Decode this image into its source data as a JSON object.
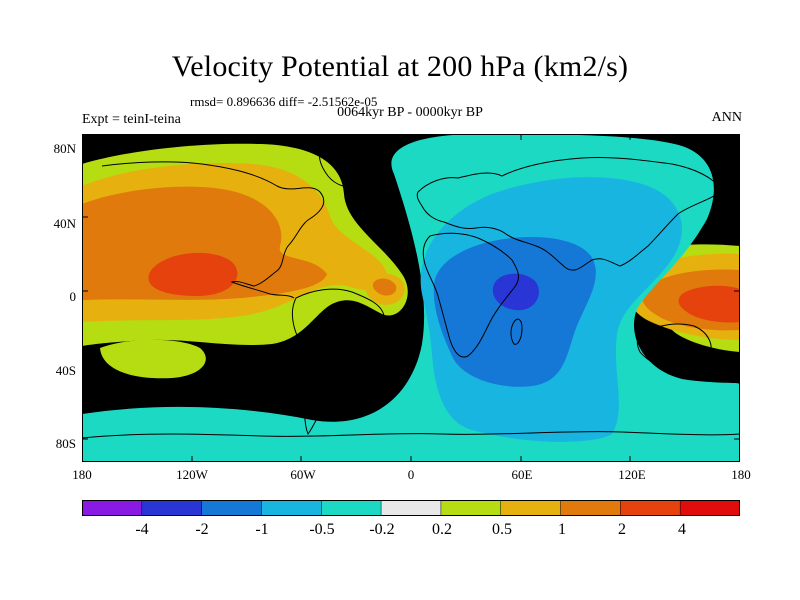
{
  "figure": {
    "title": "Velocity Potential at 200 hPa (km2/s)",
    "stats": "rmsd= 0.896636 diff= -2.51562e-05",
    "period": "0064kyr BP - 0000kyr BP",
    "experiment": "Expt = teinI-teina",
    "season": "ANN"
  },
  "axes": {
    "lat_labels": [
      "80N",
      "40N",
      "0",
      "40S",
      "80S"
    ],
    "lon_labels": [
      "180",
      "120W",
      "60W",
      "0",
      "60E",
      "120E",
      "180"
    ]
  },
  "colorbar": {
    "labels": [
      "-4",
      "-2",
      "-1",
      "-0.5",
      "-0.2",
      "0.2",
      "0.5",
      "1",
      "2",
      "4"
    ],
    "colors": [
      "#8a19e3",
      "#2a35d6",
      "#1578d6",
      "#19b5e1",
      "#1cd9c4",
      "#e8e8e8",
      "#b6dc12",
      "#e6b10f",
      "#e07a0c",
      "#e5420d",
      "#e10c0c"
    ]
  },
  "map_colors": {
    "background": "#e8e8e8",
    "strong_neg": "#2a35d6",
    "mod_neg": "#1578d6",
    "weak_neg": "#19b5e1",
    "slight_neg": "#1cd9c4",
    "slight_pos": "#b6dc12",
    "weak_pos": "#e6b10f",
    "mod_pos": "#e07a0c",
    "strong_pos": "#e5420d",
    "coast": "#000000"
  }
}
